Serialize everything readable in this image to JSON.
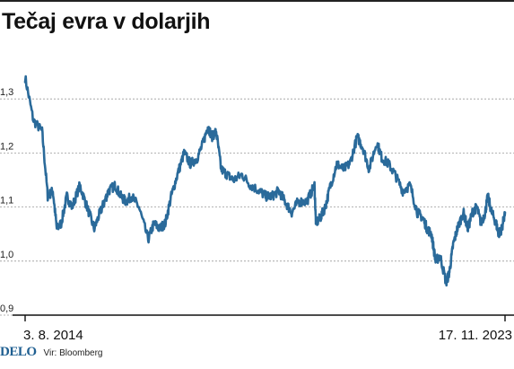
{
  "title": "Tečaj evra v dolarjih",
  "footer": {
    "logo_text": "DELO",
    "source_text": "Vir: Bloomberg"
  },
  "colors": {
    "series": "#2a6a9a",
    "grid": "#9a9a9a",
    "axis": "#111111",
    "logo": "#1f5f91"
  },
  "chart_data": {
    "type": "line",
    "title": "Tečaj evra v dolarjih",
    "xlabel": "",
    "ylabel": "",
    "ylim": [
      0.9,
      1.4
    ],
    "yticks": [
      1.3,
      1.2,
      1.1,
      1.0,
      0.9
    ],
    "ytick_labels": [
      "1,3",
      "1,2",
      "1,1",
      "1,0",
      "0,9"
    ],
    "x_start_label": "3. 8. 2014",
    "x_end_label": "17. 11. 2023",
    "grid": "horizontal dashed",
    "legend": "none",
    "series": [
      {
        "name": "",
        "x": [
          "2014-08-03",
          "2014-10-01",
          "2014-12-01",
          "2015-01-10",
          "2015-02-15",
          "2015-03-15",
          "2015-04-15",
          "2015-05-25",
          "2015-07-01",
          "2015-08-25",
          "2015-10-15",
          "2015-12-05",
          "2016-01-15",
          "2016-02-15",
          "2016-03-15",
          "2016-05-01",
          "2016-06-10",
          "2016-07-15",
          "2016-08-25",
          "2016-10-15",
          "2016-12-20",
          "2017-01-30",
          "2017-03-10",
          "2017-04-20",
          "2017-06-01",
          "2017-07-15",
          "2017-08-31",
          "2017-10-15",
          "2017-12-01",
          "2018-01-15",
          "2018-02-15",
          "2018-03-15",
          "2018-04-15",
          "2018-05-20",
          "2018-07-01",
          "2018-08-15",
          "2018-10-15",
          "2018-12-15",
          "2019-02-15",
          "2019-04-01",
          "2019-05-15",
          "2019-07-01",
          "2019-08-15",
          "2019-10-01",
          "2019-11-15",
          "2020-01-15",
          "2020-03-10",
          "2020-03-20",
          "2020-04-20",
          "2020-05-25",
          "2020-07-01",
          "2020-08-15",
          "2020-10-01",
          "2020-11-15",
          "2021-01-06",
          "2021-02-15",
          "2021-03-31",
          "2021-05-25",
          "2021-06-30",
          "2021-08-15",
          "2021-10-01",
          "2021-11-24",
          "2022-01-15",
          "2022-03-07",
          "2022-04-15",
          "2022-05-15",
          "2022-06-15",
          "2022-07-14",
          "2022-08-15",
          "2022-09-27",
          "2022-10-20",
          "2022-11-15",
          "2022-12-15",
          "2023-01-26",
          "2023-02-28",
          "2023-03-31",
          "2023-05-01",
          "2023-05-31",
          "2023-06-30",
          "2023-07-18",
          "2023-08-15",
          "2023-09-15",
          "2023-10-03",
          "2023-10-25",
          "2023-11-17"
        ],
        "y": [
          1.34,
          1.26,
          1.24,
          1.12,
          1.13,
          1.06,
          1.07,
          1.12,
          1.1,
          1.14,
          1.1,
          1.06,
          1.09,
          1.11,
          1.13,
          1.14,
          1.12,
          1.11,
          1.12,
          1.1,
          1.04,
          1.07,
          1.06,
          1.07,
          1.12,
          1.16,
          1.2,
          1.18,
          1.19,
          1.22,
          1.25,
          1.23,
          1.24,
          1.17,
          1.16,
          1.15,
          1.16,
          1.14,
          1.13,
          1.12,
          1.12,
          1.13,
          1.11,
          1.09,
          1.11,
          1.11,
          1.14,
          1.07,
          1.08,
          1.1,
          1.14,
          1.18,
          1.17,
          1.18,
          1.23,
          1.21,
          1.17,
          1.22,
          1.19,
          1.18,
          1.16,
          1.13,
          1.14,
          1.09,
          1.08,
          1.06,
          1.05,
          1.0,
          1.01,
          0.96,
          0.98,
          1.03,
          1.06,
          1.09,
          1.06,
          1.09,
          1.1,
          1.07,
          1.09,
          1.12,
          1.09,
          1.07,
          1.05,
          1.06,
          1.09
        ]
      }
    ]
  }
}
